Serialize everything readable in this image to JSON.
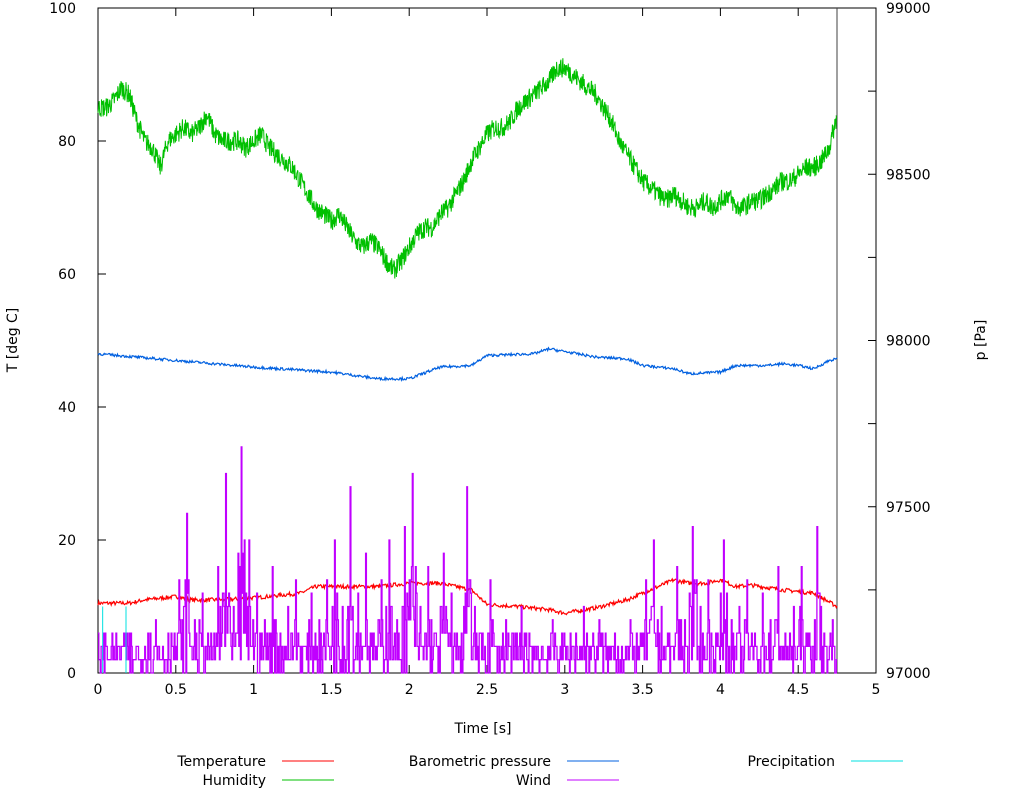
{
  "chart_data": {
    "type": "line",
    "title": "",
    "xlabel": "Time [s]",
    "ylabel": "T [deg C]",
    "y2label": "p [Pa]",
    "xlim": [
      0,
      5
    ],
    "ylim": [
      0,
      100
    ],
    "y2lim": [
      97000,
      99000
    ],
    "grid": false,
    "legend_placement": "bottom",
    "x_ticks": [
      "0",
      "0.5",
      "1",
      "1.5",
      "2",
      "2.5",
      "3",
      "3.5",
      "4",
      "4.5",
      "5"
    ],
    "y_ticks": [
      "0",
      "20",
      "40",
      "60",
      "80",
      "100"
    ],
    "y2_ticks": [
      "97000",
      "97500",
      "98000",
      "98500",
      "99000"
    ],
    "series": [
      {
        "name": "Temperature",
        "color": "#ff0000",
        "axis": "y",
        "x": [
          0,
          0.2,
          0.3,
          0.5,
          0.6,
          0.8,
          1.0,
          1.3,
          1.4,
          1.6,
          1.8,
          2.0,
          2.2,
          2.4,
          2.5,
          2.7,
          2.9,
          3.0,
          3.2,
          3.4,
          3.5,
          3.7,
          3.8,
          3.9,
          4.0,
          4.1,
          4.2,
          4.4,
          4.6,
          4.75
        ],
        "y": [
          10.5,
          10.5,
          11,
          11.5,
          11,
          11,
          11.3,
          12,
          13,
          13,
          13,
          13.5,
          13.5,
          12.5,
          10.3,
          10,
          9.5,
          9,
          9.8,
          11,
          12,
          14,
          13.5,
          13.5,
          14,
          13,
          13.2,
          12.5,
          12,
          10
        ]
      },
      {
        "name": "Humidity",
        "color": "#00c000",
        "axis": "y",
        "x_step": 0.05,
        "y": [
          85,
          85,
          86,
          88,
          87,
          83,
          80,
          79,
          76,
          80,
          81,
          82,
          81,
          82,
          84,
          81,
          80,
          80,
          80,
          79,
          80,
          81,
          79,
          78,
          77,
          76,
          74,
          72,
          70,
          69,
          68,
          69,
          67,
          65,
          64,
          65,
          64,
          62,
          60.5,
          62,
          64,
          66,
          67,
          67,
          69,
          70,
          72,
          74,
          77,
          79,
          81,
          82,
          82,
          83,
          85,
          86,
          87,
          88,
          89,
          91,
          91,
          90,
          89,
          88,
          87,
          85,
          83,
          80,
          78,
          76,
          74,
          73,
          72,
          71,
          72,
          71,
          70,
          70,
          71,
          70,
          71,
          72,
          70,
          70,
          71,
          71,
          72,
          73,
          74,
          74,
          75,
          76,
          76,
          77,
          79,
          84
        ]
      },
      {
        "name": "Barometric pressure",
        "color": "#0060e0",
        "axis": "y2",
        "x": [
          0,
          0.5,
          1.0,
          1.5,
          1.8,
          2.0,
          2.2,
          2.4,
          2.5,
          2.8,
          2.9,
          3.2,
          3.4,
          3.5,
          3.7,
          3.8,
          4.0,
          4.1,
          4.3,
          4.4,
          4.5,
          4.6,
          4.7,
          4.75
        ],
        "y": [
          97960,
          97940,
          97920,
          97905,
          97885,
          97885,
          97920,
          97925,
          97955,
          97960,
          97975,
          97950,
          97945,
          97925,
          97915,
          97900,
          97905,
          97925,
          97925,
          97930,
          97925,
          97915,
          97940,
          97945
        ]
      },
      {
        "name": "Wind",
        "color": "#c000ff",
        "axis": "y",
        "x_step": 0.05,
        "y": [
          4,
          2,
          2,
          4,
          0,
          2,
          6,
          8,
          2,
          6,
          14,
          24,
          8,
          12,
          4,
          16,
          30,
          10,
          34,
          20,
          12,
          8,
          16,
          6,
          10,
          14,
          4,
          12,
          8,
          14,
          20,
          10,
          28,
          12,
          18,
          6,
          14,
          20,
          8,
          22,
          30,
          10,
          16,
          6,
          18,
          12,
          4,
          28,
          10,
          6,
          14,
          4,
          8,
          2,
          10,
          6,
          4,
          2,
          8,
          4,
          2,
          6,
          10,
          4,
          8,
          4,
          6,
          2,
          8,
          4,
          14,
          20,
          10,
          6,
          16,
          8,
          22,
          10,
          14,
          6,
          20,
          8,
          10,
          14,
          6,
          12,
          8,
          16,
          4,
          10,
          16,
          6,
          22,
          4,
          8,
          6
        ]
      },
      {
        "name": "Precipitation",
        "color": "#00e0e0",
        "axis": "y",
        "x": [
          0.03,
          0.18
        ],
        "y": [
          10,
          10
        ]
      }
    ]
  }
}
